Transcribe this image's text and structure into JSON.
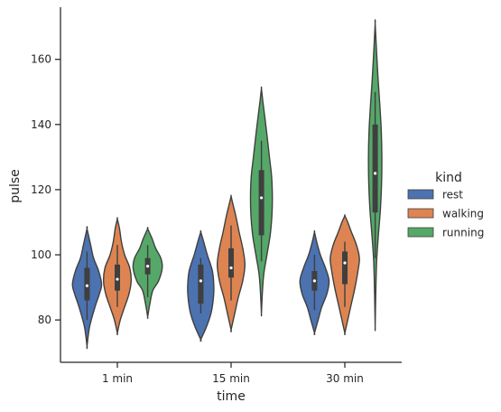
{
  "chart_data": {
    "type": "violin",
    "title": "",
    "xlabel": "time",
    "ylabel": "pulse",
    "categories": [
      "1 min",
      "15 min",
      "30 min"
    ],
    "ylim": [
      67,
      176
    ],
    "yticks": [
      80,
      100,
      120,
      140,
      160
    ],
    "grid": false,
    "legend": {
      "title": "kind",
      "placement": "right",
      "entries": [
        "rest",
        "walking",
        "running"
      ]
    },
    "series": [
      {
        "name": "rest",
        "color": "#4c72b0",
        "groups": [
          {
            "min": 72,
            "max": 108,
            "q1": 86,
            "median": 90.5,
            "q3": 96,
            "wmin": 80,
            "wmax": 101,
            "profile": [
              [
                72,
                0
              ],
              [
                78,
                0.18
              ],
              [
                84,
                0.55
              ],
              [
                88,
                0.85
              ],
              [
                91,
                1
              ],
              [
                95,
                0.8
              ],
              [
                99,
                0.45
              ],
              [
                103,
                0.25
              ],
              [
                108,
                0
              ]
            ]
          },
          {
            "min": 74,
            "max": 107,
            "q1": 85,
            "median": 92,
            "q3": 97,
            "wmin": 82,
            "wmax": 99,
            "profile": [
              [
                74,
                0
              ],
              [
                78,
                0.4
              ],
              [
                82,
                0.7
              ],
              [
                86,
                0.85
              ],
              [
                90,
                0.9
              ],
              [
                95,
                0.8
              ],
              [
                100,
                0.45
              ],
              [
                104,
                0.2
              ],
              [
                107,
                0
              ]
            ]
          },
          {
            "min": 76,
            "max": 107,
            "q1": 89,
            "median": 92,
            "q3": 95,
            "wmin": 83,
            "wmax": 100,
            "profile": [
              [
                76,
                0
              ],
              [
                80,
                0.25
              ],
              [
                84,
                0.5
              ],
              [
                88,
                0.85
              ],
              [
                92,
                1
              ],
              [
                96,
                0.75
              ],
              [
                100,
                0.4
              ],
              [
                104,
                0.15
              ],
              [
                107,
                0
              ]
            ]
          }
        ]
      },
      {
        "name": "walking",
        "color": "#dd8452",
        "groups": [
          {
            "min": 76,
            "max": 111,
            "q1": 89,
            "median": 92.5,
            "q3": 97,
            "wmin": 84,
            "wmax": 103,
            "profile": [
              [
                76,
                0
              ],
              [
                80,
                0.2
              ],
              [
                84,
                0.5
              ],
              [
                88,
                0.8
              ],
              [
                92,
                0.95
              ],
              [
                96,
                0.85
              ],
              [
                100,
                0.5
              ],
              [
                104,
                0.28
              ],
              [
                108,
                0.15
              ],
              [
                111,
                0
              ]
            ]
          },
          {
            "min": 77,
            "max": 118,
            "q1": 93,
            "median": 96,
            "q3": 102,
            "wmin": 86,
            "wmax": 109,
            "profile": [
              [
                77,
                0
              ],
              [
                82,
                0.25
              ],
              [
                87,
                0.5
              ],
              [
                92,
                0.8
              ],
              [
                97,
                0.95
              ],
              [
                102,
                0.8
              ],
              [
                107,
                0.55
              ],
              [
                112,
                0.32
              ],
              [
                116,
                0.1
              ],
              [
                118,
                0
              ]
            ]
          },
          {
            "min": 76,
            "max": 112,
            "q1": 91,
            "median": 97.5,
            "q3": 101,
            "wmin": 84,
            "wmax": 104,
            "profile": [
              [
                76,
                0
              ],
              [
                80,
                0.2
              ],
              [
                85,
                0.45
              ],
              [
                90,
                0.7
              ],
              [
                95,
                0.9
              ],
              [
                99,
                1
              ],
              [
                103,
                0.8
              ],
              [
                107,
                0.45
              ],
              [
                110,
                0.2
              ],
              [
                112,
                0
              ]
            ]
          }
        ]
      },
      {
        "name": "running",
        "color": "#55a868",
        "groups": [
          {
            "min": 81,
            "max": 108,
            "q1": 94,
            "median": 96.5,
            "q3": 99,
            "wmin": 87,
            "wmax": 103,
            "profile": [
              [
                81,
                0
              ],
              [
                85,
                0.15
              ],
              [
                89,
                0.35
              ],
              [
                92,
                0.75
              ],
              [
                96,
                1
              ],
              [
                99,
                0.9
              ],
              [
                102,
                0.55
              ],
              [
                105,
                0.3
              ],
              [
                108,
                0
              ]
            ]
          },
          {
            "min": 82,
            "max": 151,
            "q1": 106,
            "median": 117.5,
            "q3": 126,
            "wmin": 98,
            "wmax": 135,
            "profile": [
              [
                82,
                0
              ],
              [
                88,
                0.06
              ],
              [
                94,
                0.16
              ],
              [
                100,
                0.38
              ],
              [
                106,
                0.6
              ],
              [
                112,
                0.72
              ],
              [
                118,
                0.75
              ],
              [
                124,
                0.7
              ],
              [
                130,
                0.55
              ],
              [
                136,
                0.4
              ],
              [
                142,
                0.24
              ],
              [
                147,
                0.1
              ],
              [
                151,
                0
              ]
            ]
          },
          {
            "min": 78,
            "max": 171,
            "q1": 113,
            "median": 125,
            "q3": 140,
            "wmin": 99,
            "wmax": 150,
            "profile": [
              [
                78,
                0
              ],
              [
                88,
                0.04
              ],
              [
                98,
                0.1
              ],
              [
                106,
                0.22
              ],
              [
                114,
                0.36
              ],
              [
                122,
                0.44
              ],
              [
                130,
                0.46
              ],
              [
                138,
                0.42
              ],
              [
                146,
                0.32
              ],
              [
                154,
                0.2
              ],
              [
                162,
                0.1
              ],
              [
                171,
                0
              ]
            ]
          }
        ]
      }
    ]
  }
}
